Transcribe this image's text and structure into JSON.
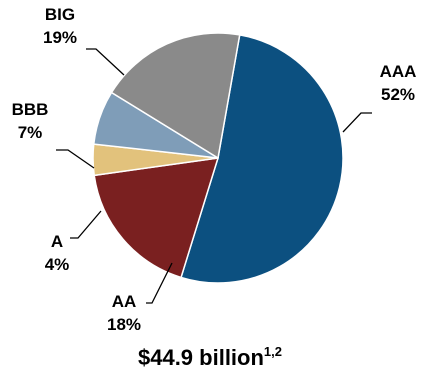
{
  "chart_data": {
    "type": "pie",
    "slices": [
      {
        "label": "AAA",
        "value": 52,
        "value_label": "52%",
        "color": "#0c5080"
      },
      {
        "label": "AA",
        "value": 18,
        "value_label": "18%",
        "color": "#7a2020"
      },
      {
        "label": "A",
        "value": 4,
        "value_label": "4%",
        "color": "#e2c27c"
      },
      {
        "label": "BBB",
        "value": 7,
        "value_label": "7%",
        "color": "#7f9db8"
      },
      {
        "label": "BIG",
        "value": 19,
        "value_label": "19%",
        "color": "#8a8a8a"
      }
    ],
    "start_angle_deg": 10,
    "direction": "clockwise",
    "legend": "none",
    "total": {
      "amount": "$44.9 billion",
      "footnote": "1,2"
    }
  }
}
